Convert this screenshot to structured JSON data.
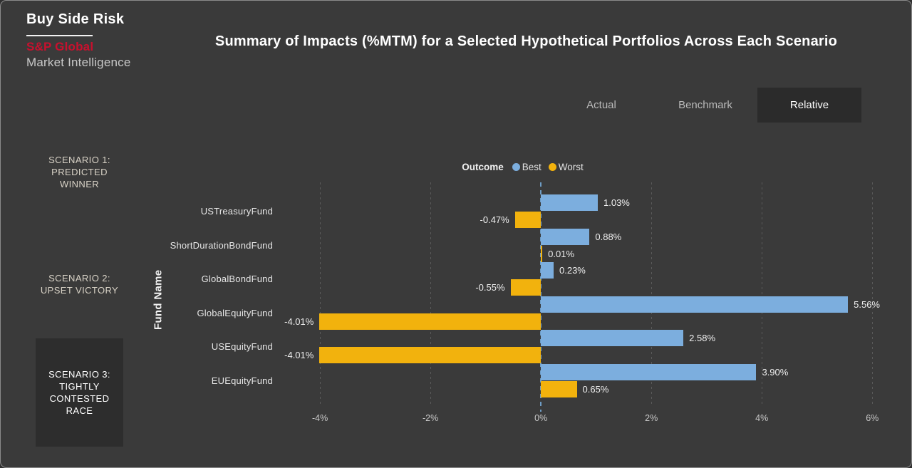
{
  "theme": {
    "background": "#3A3A3A",
    "selected_panel": "#2B2B2B",
    "accent_blue": "#7CAEDE",
    "accent_yellow": "#F2B20D",
    "brand_red": "#C8102E"
  },
  "brand": {
    "title": "Buy Side Risk",
    "company": "S&P Global",
    "division": "Market Intelligence"
  },
  "header": {
    "title": "Summary of Impacts (%MTM) for a Selected Hypothetical Portfolios Across Each Scenario"
  },
  "view_toggle": {
    "options": [
      {
        "label": "Actual",
        "selected": false
      },
      {
        "label": "Benchmark",
        "selected": false
      },
      {
        "label": "Relative",
        "selected": true
      }
    ]
  },
  "scenario_nav": {
    "items": [
      {
        "label": "SCENARIO 1:\nPREDICTED\nWINNER",
        "selected": false
      },
      {
        "label": "SCENARIO 2:\nUPSET VICTORY",
        "selected": false
      },
      {
        "label": "SCENARIO 3:\nTIGHTLY\nCONTESTED\nRACE",
        "selected": true
      }
    ]
  },
  "chart_data": {
    "type": "bar",
    "orientation": "horizontal",
    "legend_title": "Outcome",
    "ylabel": "Fund Name",
    "categories": [
      "USTreasuryFund",
      "ShortDurationBondFund",
      "GlobalBondFund",
      "GlobalEquityFund",
      "USEquityFund",
      "EUEquityFund"
    ],
    "series": [
      {
        "name": "Best",
        "color": "#7CAEDE",
        "values": [
          1.03,
          0.88,
          0.23,
          5.56,
          2.58,
          3.9
        ],
        "labels": [
          "1.03%",
          "0.88%",
          "0.23%",
          "5.56%",
          "2.58%",
          "3.90%"
        ]
      },
      {
        "name": "Worst",
        "color": "#F2B20D",
        "values": [
          -0.47,
          0.01,
          -0.55,
          -4.01,
          -4.01,
          0.65
        ],
        "labels": [
          "-0.47%",
          "0.01%",
          "-0.55%",
          "-4.01%",
          "-4.01%",
          "0.65%"
        ]
      }
    ],
    "xticks": [
      {
        "value": -4,
        "label": "-4%"
      },
      {
        "value": -2,
        "label": "-2%"
      },
      {
        "value": 0,
        "label": "0%"
      },
      {
        "value": 2,
        "label": "2%"
      },
      {
        "value": 4,
        "label": "4%"
      },
      {
        "value": 6,
        "label": "6%"
      }
    ],
    "xlim": [
      -4.75,
      6.5
    ],
    "grid": "dashed-vertical",
    "zero_line": true
  }
}
